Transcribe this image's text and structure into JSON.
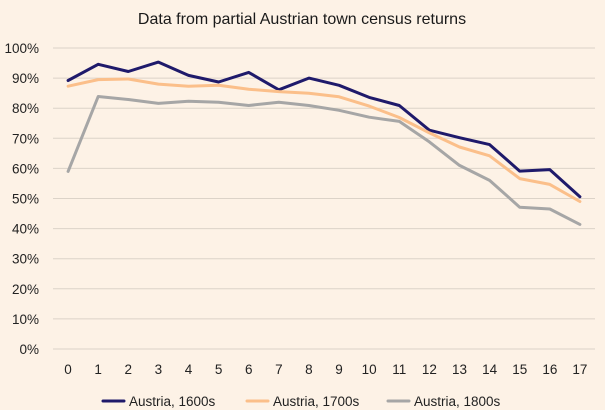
{
  "chart_data": {
    "type": "line",
    "title": "Data from partial Austrian town census returns",
    "xlabel": "",
    "ylabel": "",
    "x": [
      0,
      1,
      2,
      3,
      4,
      5,
      6,
      7,
      8,
      9,
      10,
      11,
      12,
      13,
      14,
      15,
      16,
      17
    ],
    "ylim": [
      0,
      100
    ],
    "yticks": [
      0,
      10,
      20,
      30,
      40,
      50,
      60,
      70,
      80,
      90,
      100
    ],
    "ytick_labels": [
      "0%",
      "10%",
      "20%",
      "30%",
      "40%",
      "50%",
      "60%",
      "70%",
      "80%",
      "90%",
      "100%"
    ],
    "grid": true,
    "legend_position": "bottom",
    "series": [
      {
        "name": "Austria, 1600s",
        "color": "#1f1a6b",
        "values": [
          89.2,
          94.6,
          92.2,
          95.3,
          90.9,
          88.7,
          91.9,
          86.1,
          90.0,
          87.6,
          83.6,
          80.9,
          72.7,
          70.2,
          67.9,
          59.1,
          59.6,
          50.6
        ]
      },
      {
        "name": "Austria, 1700s",
        "color": "#fbbf8a",
        "values": [
          87.3,
          89.5,
          89.7,
          88.0,
          87.3,
          87.6,
          86.3,
          85.5,
          85.0,
          83.8,
          80.7,
          76.9,
          71.8,
          67.1,
          64.2,
          56.6,
          54.7,
          49.0
        ]
      },
      {
        "name": "Austria, 1800s",
        "color": "#a6a6a6",
        "values": [
          59.0,
          83.9,
          82.9,
          81.6,
          82.3,
          82.0,
          80.9,
          82.0,
          80.9,
          79.3,
          77.0,
          75.6,
          68.8,
          61.0,
          56.0,
          47.1,
          46.5,
          41.4
        ]
      }
    ]
  }
}
